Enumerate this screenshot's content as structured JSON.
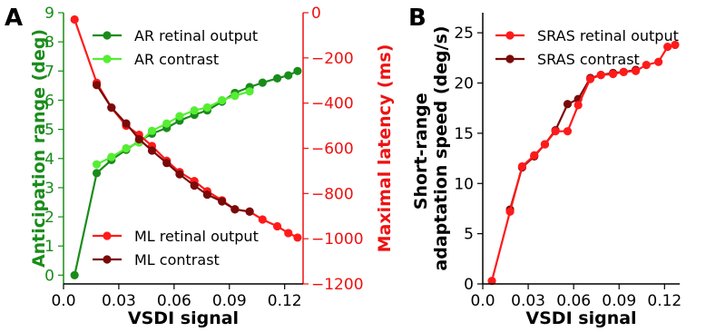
{
  "panels": {
    "a": "A",
    "b": "B"
  },
  "colors": {
    "ar_output": "#1a8c1a",
    "ar_contrast": "#55ee33",
    "ml_output": "#ff1a1a",
    "ml_contrast": "#7a0a0a",
    "sras_output": "#ff1a1a",
    "sras_contrast": "#7a0a0a",
    "left_axis": "#1a8c1a",
    "right_axis": "#ee1111"
  },
  "chart_data": [
    {
      "type": "line",
      "xlabel": "VSDI signal",
      "ylabel": "Anticipation range (deg)",
      "y2label": "Maximal latency (ms)",
      "xlim": [
        0.0,
        0.13
      ],
      "ylim": [
        -0.3,
        9.0
      ],
      "y2lim": [
        -1200,
        0
      ],
      "xticks": [
        "0.0",
        "0.03",
        "0.06",
        "0.09",
        "0.12"
      ],
      "xtick_values": [
        0.0,
        0.03,
        0.06,
        0.09,
        0.12
      ],
      "yticks": [
        "0",
        "1",
        "2",
        "3",
        "4",
        "5",
        "6",
        "7",
        "8",
        "9"
      ],
      "ytick_values": [
        0,
        1,
        2,
        3,
        4,
        5,
        6,
        7,
        8,
        9
      ],
      "y2ticks": [
        "0",
        "−200",
        "−400",
        "−600",
        "−800",
        "−1000",
        "−1200"
      ],
      "y2tick_values": [
        0,
        -200,
        -400,
        -600,
        -800,
        -1000,
        -1200
      ],
      "legend_top": [
        "AR retinal output",
        "AR contrast"
      ],
      "legend_bottom": [
        "ML retinal output",
        "ML contrast"
      ],
      "series": [
        {
          "name": "AR retinal output",
          "axis": "left",
          "x": [
            0.006,
            0.018,
            0.026,
            0.034,
            0.041,
            0.048,
            0.056,
            0.063,
            0.071,
            0.078,
            0.086,
            0.093,
            0.101,
            0.108,
            0.116,
            0.122,
            0.127
          ],
          "y": [
            0.0,
            3.5,
            3.95,
            4.3,
            4.6,
            4.85,
            5.05,
            5.3,
            5.5,
            5.65,
            5.95,
            6.25,
            6.45,
            6.6,
            6.75,
            6.85,
            7.0
          ]
        },
        {
          "name": "AR contrast",
          "axis": "left",
          "x": [
            0.018,
            0.026,
            0.034,
            0.041,
            0.048,
            0.056,
            0.063,
            0.071,
            0.078,
            0.086,
            0.093,
            0.101
          ],
          "y": [
            3.8,
            4.05,
            4.35,
            4.55,
            4.95,
            5.2,
            5.45,
            5.65,
            5.75,
            6.0,
            6.15,
            6.3
          ]
        },
        {
          "name": "ML retinal output",
          "axis": "right",
          "x": [
            0.006,
            0.018,
            0.026,
            0.034,
            0.041,
            0.048,
            0.056,
            0.063,
            0.071,
            0.078,
            0.086,
            0.093,
            0.101,
            0.108,
            0.116,
            0.122,
            0.127
          ],
          "y": [
            -30,
            -310,
            -420,
            -500,
            -540,
            -590,
            -655,
            -705,
            -745,
            -790,
            -830,
            -870,
            -880,
            -915,
            -945,
            -975,
            -995
          ]
        },
        {
          "name": "ML contrast",
          "axis": "right",
          "x": [
            0.018,
            0.026,
            0.034,
            0.041,
            0.048,
            0.056,
            0.063,
            0.071,
            0.078,
            0.086,
            0.093,
            0.101
          ],
          "y": [
            -320,
            -420,
            -490,
            -560,
            -610,
            -665,
            -715,
            -765,
            -805,
            -835,
            -870,
            -880
          ]
        }
      ]
    },
    {
      "type": "line",
      "xlabel": "VSDI signal",
      "ylabel": "Short-range adaptation speed (deg/s)",
      "ylabel_lines": [
        "Short-range",
        "adaptation speed (deg/s)"
      ],
      "xlim": [
        0.0,
        0.13
      ],
      "ylim": [
        0,
        27
      ],
      "xticks": [
        "0.0",
        "0.03",
        "0.06",
        "0.09",
        "0.12"
      ],
      "xtick_values": [
        0.0,
        0.03,
        0.06,
        0.09,
        0.12
      ],
      "yticks": [
        "0",
        "5",
        "10",
        "15",
        "20",
        "25"
      ],
      "ytick_values": [
        0,
        5,
        10,
        15,
        20,
        25
      ],
      "series": [
        {
          "name": "SRAS retinal output",
          "x": [
            0.006,
            0.018,
            0.026,
            0.034,
            0.041,
            0.048,
            0.056,
            0.063,
            0.071,
            0.078,
            0.086,
            0.093,
            0.101,
            0.108,
            0.116,
            0.122,
            0.127
          ],
          "y": [
            0.3,
            7.2,
            11.7,
            12.8,
            13.9,
            15.2,
            15.2,
            17.8,
            20.4,
            20.8,
            20.9,
            21.1,
            21.2,
            21.8,
            22.1,
            23.6,
            23.8
          ]
        },
        {
          "name": "SRAS contrast",
          "x": [
            0.018,
            0.026,
            0.034,
            0.041,
            0.048,
            0.056,
            0.063,
            0.071,
            0.078,
            0.086,
            0.093,
            0.101
          ],
          "y": [
            7.4,
            11.6,
            12.7,
            13.9,
            15.3,
            17.9,
            18.4,
            20.5,
            20.8,
            21.0,
            21.1,
            21.3
          ]
        }
      ]
    }
  ]
}
